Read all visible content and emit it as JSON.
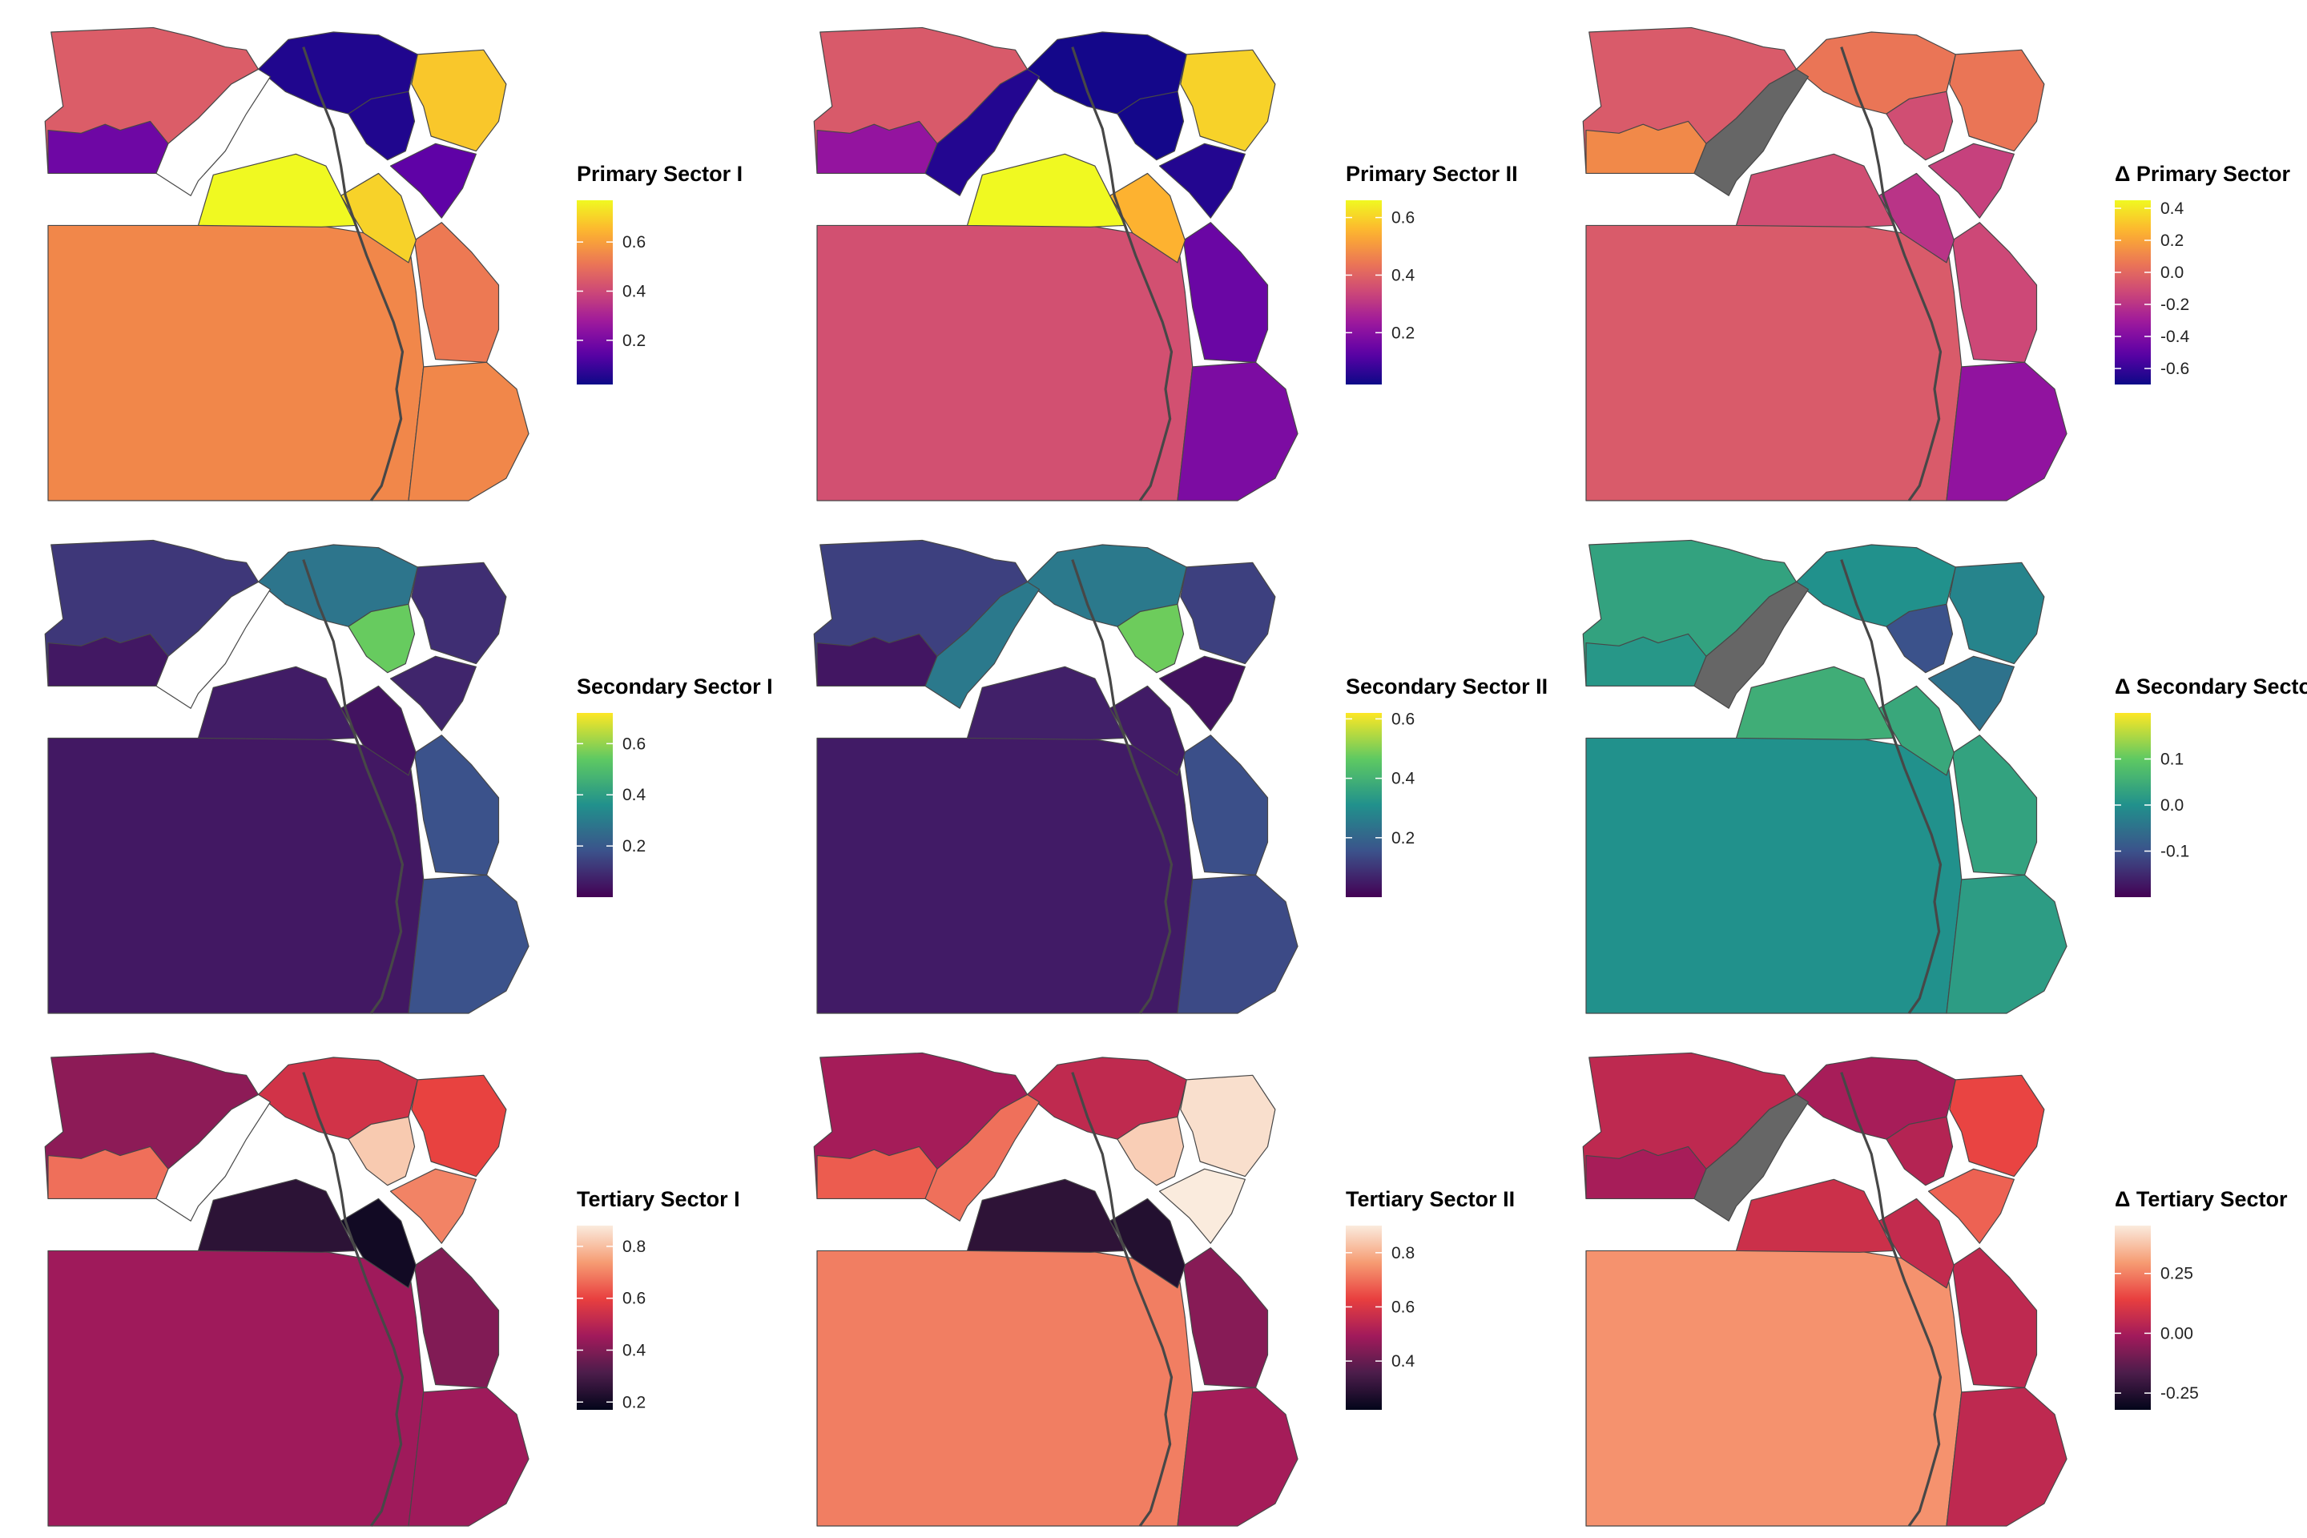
{
  "panels": [
    {
      "id": "primary-sector-1",
      "legend": {
        "title": "Primary Sector I",
        "ticks": [
          "0.2",
          "0.4",
          "0.6"
        ],
        "domain": [
          0.02,
          0.77
        ],
        "tick_values": [
          0.2,
          0.4,
          0.6
        ]
      },
      "palette": "plasma",
      "fills": {
        "west": 0.45,
        "south_west": 0.18,
        "south_east": 0.55,
        "sinai_north": 0.68,
        "sinai_south": 0.15,
        "red_sea_north": 0.52,
        "red_sea_south": 0.55,
        "nile_valley": 0.77,
        "nile_valley_2": 0.7,
        "delta": 0.05,
        "canal": 0.05,
        "oasis": "missing"
      }
    },
    {
      "id": "primary-sector-2",
      "legend": {
        "title": "Primary Sector II",
        "ticks": [
          "0.2",
          "0.4",
          "0.6"
        ],
        "domain": [
          0.02,
          0.66
        ],
        "tick_values": [
          0.2,
          0.4,
          0.6
        ]
      },
      "palette": "plasma",
      "fills": {
        "west": 0.38,
        "south_west": 0.22,
        "south_east": 0.36,
        "sinai_north": 0.6,
        "sinai_south": 0.05,
        "red_sea_north": 0.15,
        "red_sea_south": 0.18,
        "nile_valley": 0.66,
        "nile_valley_2": 0.55,
        "delta": 0.03,
        "canal": 0.03,
        "oasis": 0.05
      }
    },
    {
      "id": "delta-primary-sector",
      "legend": {
        "title": "Δ Primary Sector",
        "ticks": [
          "-0.6",
          "-0.4",
          "-0.2",
          "0.0",
          "0.2",
          "0.4"
        ],
        "domain": [
          -0.7,
          0.45
        ],
        "tick_values": [
          -0.6,
          -0.4,
          -0.2,
          0.0,
          0.2,
          0.4
        ]
      },
      "palette": "plasma",
      "fills": {
        "west": -0.05,
        "south_west": 0.12,
        "south_east": -0.05,
        "sinai_north": 0.05,
        "sinai_south": -0.15,
        "red_sea_north": -0.12,
        "red_sea_south": -0.35,
        "nile_valley": -0.1,
        "nile_valley_2": -0.2,
        "delta": 0.05,
        "canal": -0.1,
        "oasis": "missing"
      }
    },
    {
      "id": "secondary-sector-1",
      "legend": {
        "title": "Secondary Sector I",
        "ticks": [
          "0.2",
          "0.4",
          "0.6"
        ],
        "domain": [
          0.0,
          0.72
        ],
        "tick_values": [
          0.2,
          0.4,
          0.6
        ]
      },
      "palette": "viridis",
      "fills": {
        "west": 0.12,
        "south_west": 0.05,
        "south_east": 0.05,
        "sinai_north": 0.1,
        "sinai_south": 0.08,
        "red_sea_north": 0.18,
        "red_sea_south": 0.18,
        "nile_valley": 0.06,
        "nile_valley_2": 0.04,
        "delta": 0.28,
        "canal": 0.55,
        "oasis": "missing"
      }
    },
    {
      "id": "secondary-sector-2",
      "legend": {
        "title": "Secondary Sector II",
        "ticks": [
          "0.2",
          "0.4",
          "0.6"
        ],
        "domain": [
          0.0,
          0.62
        ],
        "tick_values": [
          0.2,
          0.4,
          0.6
        ]
      },
      "palette": "viridis",
      "fills": {
        "west": 0.12,
        "south_west": 0.04,
        "south_east": 0.05,
        "sinai_north": 0.12,
        "sinai_south": 0.03,
        "red_sea_north": 0.15,
        "red_sea_south": 0.14,
        "nile_valley": 0.06,
        "nile_valley_2": 0.05,
        "delta": 0.25,
        "canal": 0.48,
        "oasis": 0.25
      }
    },
    {
      "id": "delta-secondary-sector",
      "legend": {
        "title": "Δ Secondary Sector",
        "ticks": [
          "-0.1",
          "0.0",
          "0.1"
        ],
        "domain": [
          -0.2,
          0.2
        ],
        "tick_values": [
          -0.1,
          0.0,
          0.1
        ]
      },
      "palette": "viridis",
      "fills": {
        "west": 0.03,
        "south_west": 0.01,
        "south_east": 0.0,
        "sinai_north": -0.02,
        "sinai_south": -0.05,
        "red_sea_north": 0.03,
        "red_sea_south": 0.02,
        "nile_valley": 0.05,
        "nile_valley_2": 0.04,
        "delta": 0.0,
        "canal": -0.1,
        "oasis": "missing"
      }
    },
    {
      "id": "tertiary-sector-1",
      "legend": {
        "title": "Tertiary Sector I",
        "ticks": [
          "0.2",
          "0.4",
          "0.6",
          "0.8"
        ],
        "domain": [
          0.17,
          0.88
        ],
        "tick_values": [
          0.2,
          0.4,
          0.6,
          0.8
        ]
      },
      "palette": "rocket",
      "fills": {
        "west": 0.42,
        "south_west": 0.67,
        "south_east": 0.45,
        "sinai_north": 0.6,
        "sinai_south": 0.7,
        "red_sea_north": 0.4,
        "red_sea_south": 0.45,
        "nile_valley": 0.25,
        "nile_valley_2": 0.2,
        "delta": 0.55,
        "canal": 0.82,
        "oasis": "missing"
      }
    },
    {
      "id": "tertiary-sector-2",
      "legend": {
        "title": "Tertiary Sector II",
        "ticks": [
          "0.4",
          "0.6",
          "0.8"
        ],
        "domain": [
          0.22,
          0.9
        ],
        "tick_values": [
          0.4,
          0.6,
          0.8
        ]
      },
      "palette": "rocket",
      "fills": {
        "west": 0.5,
        "south_west": 0.67,
        "south_east": 0.72,
        "sinai_north": 0.88,
        "sinai_south": 0.9,
        "red_sea_north": 0.45,
        "red_sea_south": 0.5,
        "nile_valley": 0.3,
        "nile_valley_2": 0.28,
        "delta": 0.55,
        "canal": 0.85,
        "oasis": 0.7
      }
    },
    {
      "id": "delta-tertiary-sector",
      "legend": {
        "title": "Δ Tertiary Sector",
        "ticks": [
          "-0.25",
          "0.00",
          "0.25"
        ],
        "domain": [
          -0.32,
          0.45
        ],
        "tick_values": [
          -0.25,
          0.0,
          0.25
        ]
      },
      "palette": "rocket",
      "fills": {
        "west": 0.05,
        "south_west": 0.0,
        "south_east": 0.28,
        "sinai_north": 0.15,
        "sinai_south": 0.2,
        "red_sea_north": 0.05,
        "red_sea_south": 0.05,
        "nile_valley": 0.08,
        "nile_valley_2": 0.06,
        "delta": 0.0,
        "canal": 0.03,
        "oasis": "missing"
      }
    }
  ],
  "colors": {
    "missing": "#666666",
    "border": "#474747",
    "background": "#ffffff"
  }
}
